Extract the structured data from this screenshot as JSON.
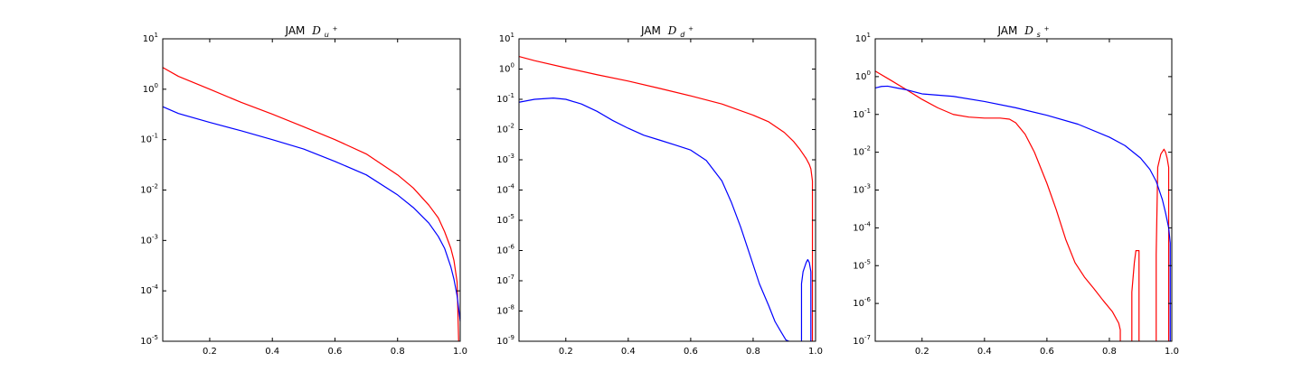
{
  "colors": {
    "red": "#ff0000",
    "blue": "#0000ff",
    "axes": "#000000",
    "background": "#ffffff"
  },
  "chart_data": [
    {
      "type": "line",
      "title_text": "JAM",
      "title_math_base": "D",
      "title_math_sub": "u",
      "title_math_sup": "+",
      "xlim": [
        0.05,
        1.0
      ],
      "ylim": [
        1e-05,
        10
      ],
      "yscale": "log",
      "grid": false,
      "xticks": [
        0.2,
        0.4,
        0.6,
        0.8,
        1.0
      ],
      "xtick_labels": [
        "0.2",
        "0.4",
        "0.6",
        "0.8",
        "1.0"
      ],
      "ytick_base": "10",
      "ytick_exponents": [
        "-5",
        "-4",
        "-3",
        "-2",
        "-1",
        "0",
        "1"
      ],
      "series": [
        {
          "color": "#ff0000",
          "x": [
            0.05,
            0.1,
            0.2,
            0.3,
            0.4,
            0.5,
            0.6,
            0.7,
            0.8,
            0.85,
            0.9,
            0.93,
            0.95,
            0.97,
            0.98,
            0.99,
            0.995
          ],
          "y": [
            2.7,
            1.8,
            1.0,
            0.55,
            0.32,
            0.18,
            0.1,
            0.052,
            0.02,
            0.011,
            0.005,
            0.0028,
            0.0015,
            0.0007,
            0.0004,
            0.00015,
            1e-05
          ]
        },
        {
          "color": "#0000ff",
          "x": [
            0.05,
            0.1,
            0.2,
            0.3,
            0.4,
            0.5,
            0.6,
            0.7,
            0.8,
            0.85,
            0.9,
            0.93,
            0.95,
            0.97,
            0.98,
            0.99,
            1.0
          ],
          "y": [
            0.45,
            0.33,
            0.22,
            0.15,
            0.1,
            0.065,
            0.037,
            0.02,
            0.008,
            0.0045,
            0.0022,
            0.0012,
            0.0007,
            0.0003,
            0.00017,
            8e-05,
            2.5e-05
          ]
        }
      ]
    },
    {
      "type": "line",
      "title_text": "JAM",
      "title_math_base": "D",
      "title_math_sub": "d",
      "title_math_sup": "+",
      "xlim": [
        0.05,
        1.0
      ],
      "ylim": [
        1e-09,
        10
      ],
      "yscale": "log",
      "grid": false,
      "xticks": [
        0.2,
        0.4,
        0.6,
        0.8,
        1.0
      ],
      "xtick_labels": [
        "0.2",
        "0.4",
        "0.6",
        "0.8",
        "1.0"
      ],
      "ytick_base": "10",
      "ytick_exponents": [
        "-9",
        "-8",
        "-7",
        "-6",
        "-5",
        "-4",
        "-3",
        "-2",
        "-1",
        "0",
        "1"
      ],
      "series": [
        {
          "color": "#ff0000",
          "x": [
            0.05,
            0.1,
            0.2,
            0.3,
            0.4,
            0.5,
            0.6,
            0.7,
            0.8,
            0.85,
            0.9,
            0.93,
            0.95,
            0.97,
            0.98,
            0.985,
            0.99,
            0.99
          ],
          "y": [
            2.6,
            1.9,
            1.1,
            0.65,
            0.4,
            0.23,
            0.13,
            0.07,
            0.03,
            0.018,
            0.008,
            0.004,
            0.0022,
            0.0011,
            0.0007,
            0.0005,
            0.0002,
            1e-09
          ]
        },
        {
          "color": "#0000ff",
          "x": [
            0.05,
            0.1,
            0.16,
            0.2,
            0.25,
            0.3,
            0.35,
            0.4,
            0.45,
            0.5,
            0.55,
            0.6,
            0.65,
            0.7,
            0.73,
            0.76,
            0.79,
            0.82,
            0.85,
            0.87,
            0.89,
            0.905,
            0.915,
            0.915
          ],
          "y": [
            0.08,
            0.1,
            0.11,
            0.1,
            0.07,
            0.04,
            0.02,
            0.011,
            0.0065,
            0.0045,
            0.0031,
            0.0021,
            0.00095,
            0.0002,
            4e-05,
            6e-06,
            7e-07,
            8e-08,
            1.5e-08,
            4.5e-09,
            2e-09,
            1.1e-09,
            5e-10,
            1e-09
          ]
        },
        {
          "color": "#0000ff",
          "x": [
            0.955,
            0.955,
            0.96,
            0.97,
            0.975,
            0.98,
            0.985,
            0.985
          ],
          "y": [
            1e-09,
            8e-08,
            2e-07,
            4e-07,
            5e-07,
            4e-07,
            2e-07,
            1e-09
          ]
        }
      ]
    },
    {
      "type": "line",
      "title_text": "JAM",
      "title_math_base": "D",
      "title_math_sub": "s",
      "title_math_sup": "+",
      "xlim": [
        0.05,
        1.0
      ],
      "ylim": [
        1e-07,
        10
      ],
      "yscale": "log",
      "grid": false,
      "xticks": [
        0.2,
        0.4,
        0.6,
        0.8,
        1.0
      ],
      "xtick_labels": [
        "0.2",
        "0.4",
        "0.6",
        "0.8",
        "1.0"
      ],
      "ytick_base": "10",
      "ytick_exponents": [
        "-7",
        "-6",
        "-5",
        "-4",
        "-3",
        "-2",
        "-1",
        "0",
        "1"
      ],
      "series": [
        {
          "color": "#ff0000",
          "x": [
            0.05,
            0.1,
            0.15,
            0.2,
            0.25,
            0.3,
            0.35,
            0.4,
            0.45,
            0.48,
            0.5,
            0.53,
            0.56,
            0.6,
            0.63,
            0.66,
            0.69,
            0.72,
            0.75,
            0.78,
            0.81,
            0.83,
            0.835,
            0.835
          ],
          "y": [
            1.4,
            0.8,
            0.45,
            0.25,
            0.15,
            0.1,
            0.085,
            0.08,
            0.08,
            0.075,
            0.06,
            0.03,
            0.01,
            0.0015,
            0.0003,
            5e-05,
            1.2e-05,
            5e-06,
            2.5e-06,
            1.2e-06,
            6e-07,
            3e-07,
            2e-07,
            1e-07
          ]
        },
        {
          "color": "#ff0000",
          "x": [
            0.872,
            0.872,
            0.88,
            0.885,
            0.895,
            0.895
          ],
          "y": [
            1e-07,
            2e-06,
            1.2e-05,
            2.5e-05,
            2.5e-05,
            1e-07
          ]
        },
        {
          "color": "#ff0000",
          "x": [
            0.95,
            0.95,
            0.955,
            0.965,
            0.975,
            0.98,
            0.985,
            0.99,
            0.99
          ],
          "y": [
            1e-07,
            2e-05,
            0.004,
            0.009,
            0.012,
            0.01,
            0.007,
            0.004,
            1e-07
          ]
        },
        {
          "color": "#0000ff",
          "x": [
            0.05,
            0.07,
            0.09,
            0.12,
            0.15,
            0.2,
            0.3,
            0.4,
            0.5,
            0.6,
            0.7,
            0.8,
            0.85,
            0.9,
            0.93,
            0.95,
            0.97,
            0.98,
            0.99,
            0.995,
            0.995
          ],
          "y": [
            0.5,
            0.55,
            0.56,
            0.5,
            0.45,
            0.35,
            0.3,
            0.22,
            0.15,
            0.095,
            0.055,
            0.025,
            0.015,
            0.007,
            0.0035,
            0.0017,
            0.00055,
            0.00025,
            0.0001,
            4e-05,
            1e-07
          ]
        }
      ]
    }
  ]
}
